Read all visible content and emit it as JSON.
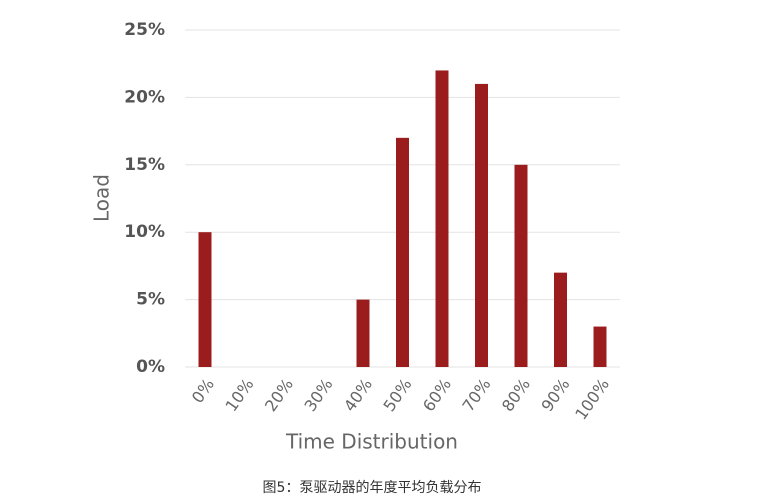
{
  "chart_data": {
    "type": "bar",
    "x_label": "Time Distribution",
    "y_label": "Load",
    "caption": "图5：泵驱动器的年度平均负载分布",
    "categories": [
      "0%",
      "10%",
      "20%",
      "30%",
      "40%",
      "50%",
      "60%",
      "70%",
      "80%",
      "90%",
      "100%"
    ],
    "values": [
      10,
      0,
      0,
      0,
      5,
      17,
      22,
      21,
      15,
      7,
      3
    ],
    "color": "#9b1c1c",
    "ylim": [
      0,
      25
    ],
    "yticks": [
      {
        "value": 0,
        "label": "0%"
      },
      {
        "value": 5,
        "label": "5%"
      },
      {
        "value": 10,
        "label": "10%"
      },
      {
        "value": 15,
        "label": "15%"
      },
      {
        "value": 20,
        "label": "20%"
      },
      {
        "value": 25,
        "label": "25%"
      }
    ],
    "grid": true
  }
}
